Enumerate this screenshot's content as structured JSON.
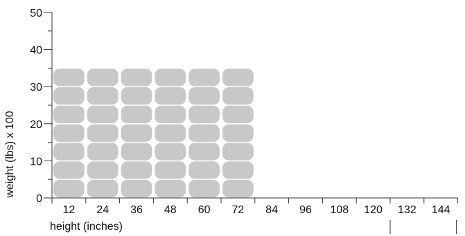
{
  "chart_data": {
    "type": "bar",
    "title": "",
    "xlabel": "height (inches)",
    "ylabel": "weight (lbs) x 100",
    "categories": [
      "12",
      "24",
      "36",
      "48",
      "60",
      "72",
      "84",
      "96",
      "108",
      "120",
      "132",
      "144"
    ],
    "values": [
      35,
      35,
      35,
      35,
      35,
      35,
      0,
      0,
      0,
      0,
      0,
      0
    ],
    "segments_per_bar": 7,
    "segment_size": 5,
    "ylim": [
      0,
      50
    ],
    "yticks": [
      0,
      10,
      20,
      30,
      40,
      50
    ],
    "ytick_labels": [
      "0",
      "10",
      "20",
      "30",
      "40",
      "50"
    ],
    "grid": false,
    "legend": "none",
    "bar_color": "#c8c8c8",
    "axis_color": "#333333"
  }
}
